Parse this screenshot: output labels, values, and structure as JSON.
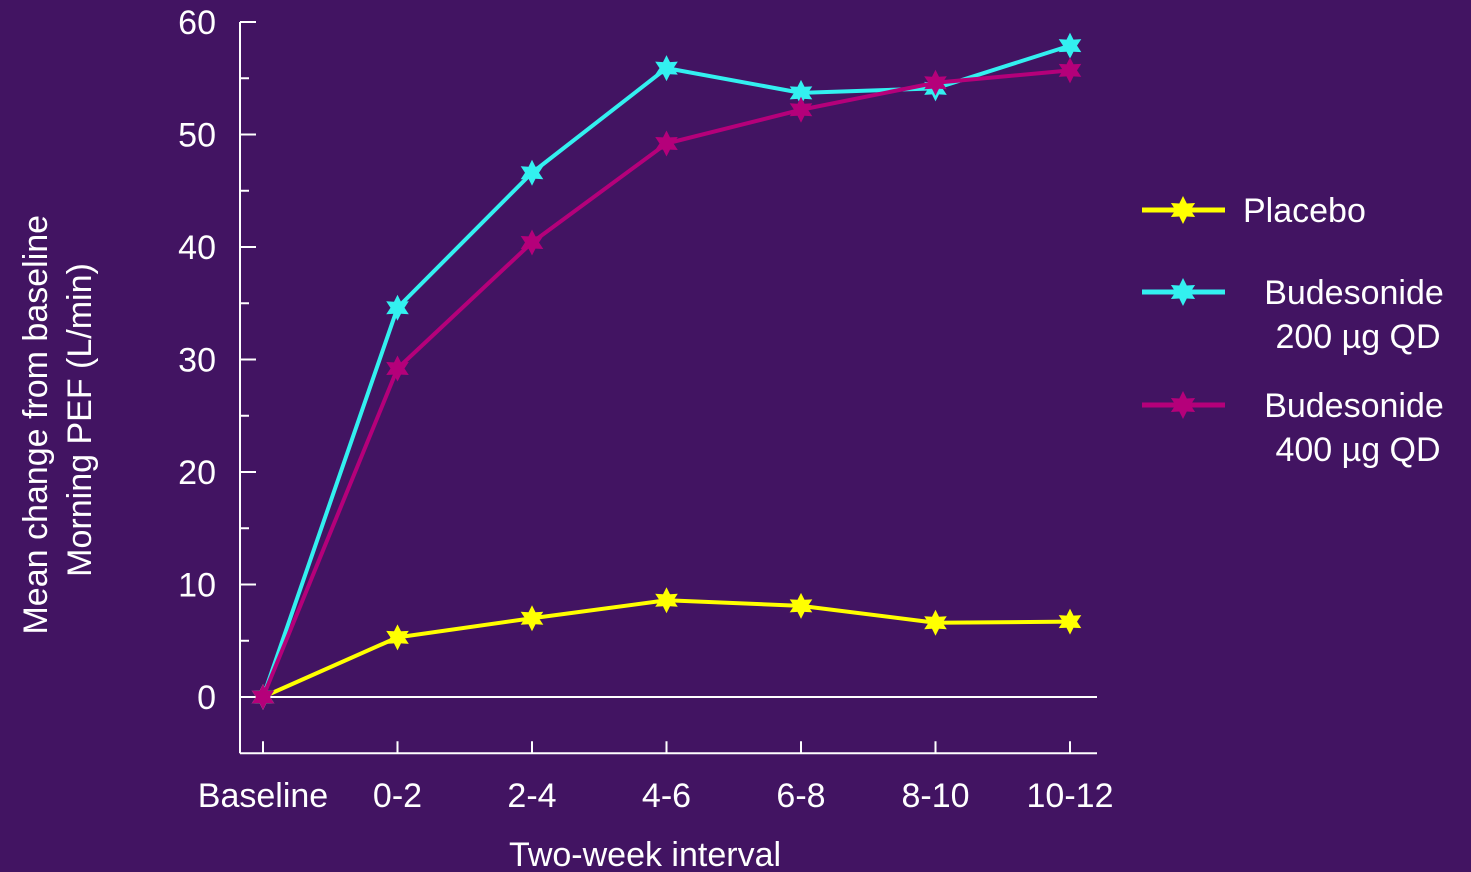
{
  "colors": {
    "background": "#421462",
    "axis": "#ffffff"
  },
  "chart_data": {
    "type": "line",
    "categories": [
      "Baseline",
      "0-2",
      "2-4",
      "4-6",
      "6-8",
      "8-10",
      "10-12"
    ],
    "series": [
      {
        "name": "Placebo",
        "color": "#ffff00",
        "marker": "star",
        "values": [
          0,
          5.3,
          7.0,
          8.6,
          8.1,
          6.6,
          6.7
        ]
      },
      {
        "name": "Budesonide 200 µg QD",
        "name_lines": [
          "Budesonide",
          "200 µg QD"
        ],
        "color": "#33f0f0",
        "marker": "star",
        "values": [
          0,
          34.6,
          46.6,
          55.9,
          53.7,
          54.1,
          57.9
        ]
      },
      {
        "name": "Budesonide 400 µg QD",
        "name_lines": [
          "Budesonide",
          "400 µg QD"
        ],
        "color": "#b5007a",
        "marker": "star",
        "values": [
          0,
          29.2,
          40.4,
          49.2,
          52.2,
          54.6,
          55.7
        ]
      }
    ],
    "title": "",
    "xlabel": "Two-week interval",
    "ylabel_lines": [
      "Mean change from baseline",
      "Morning PEF (L/min)"
    ],
    "yticks": [
      0,
      10,
      20,
      30,
      40,
      50,
      60
    ],
    "ylim": [
      -5,
      60
    ],
    "grid": false,
    "legend_position": "right"
  }
}
